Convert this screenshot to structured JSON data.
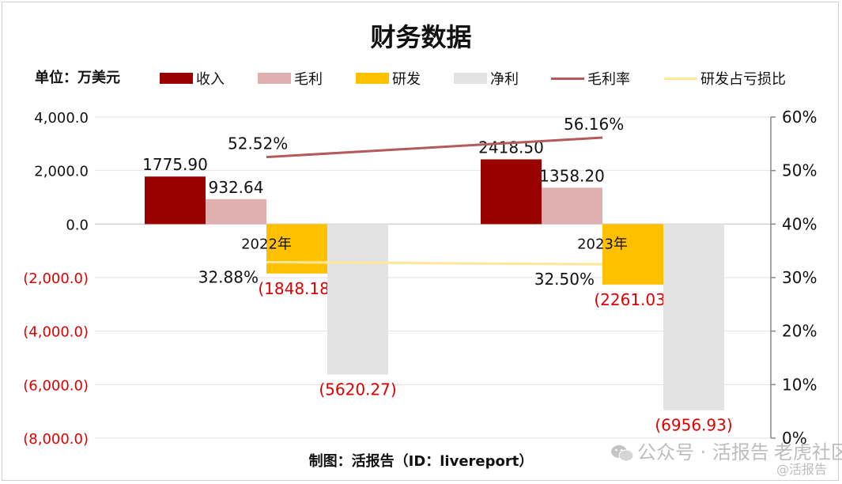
{
  "title": "财务数据",
  "unit_label": "单位：万美元",
  "source_label": "制图：活报告（ID：livereport）",
  "watermark": "公众号 · 活报告",
  "watermark_tag": "老虎社区",
  "watermark_sub": "@活报告",
  "colors": {
    "revenue": "#990000",
    "gross_profit": "#e0b0b0",
    "rd": "#ffc000",
    "net_profit": "#e3e3e3",
    "gross_margin_line": "#b55a5a",
    "rd_ratio_line": "#ffe699",
    "negative_text": "#e00000"
  },
  "legend": [
    {
      "label": "收入",
      "kind": "bar",
      "color": "#990000"
    },
    {
      "label": "毛利",
      "kind": "bar",
      "color": "#e0b0b0"
    },
    {
      "label": "研发",
      "kind": "bar",
      "color": "#ffc000"
    },
    {
      "label": "净利",
      "kind": "bar",
      "color": "#e3e3e3"
    },
    {
      "label": "毛利率",
      "kind": "line",
      "color": "#b55a5a"
    },
    {
      "label": "研发占亏损比",
      "kind": "line",
      "color": "#ffe699"
    }
  ],
  "chart_data": {
    "type": "bar",
    "categories": [
      "2022年",
      "2023年"
    ],
    "series": [
      {
        "name": "收入",
        "values": [
          1775.9,
          2418.5
        ],
        "labels": [
          "1775.90",
          "2418.50"
        ]
      },
      {
        "name": "毛利",
        "values": [
          932.64,
          1358.2
        ],
        "labels": [
          "932.64",
          "1358.20"
        ]
      },
      {
        "name": "研发",
        "values": [
          -1848.18,
          -2261.03
        ],
        "labels": [
          "(1848.18)",
          "(2261.03)"
        ]
      },
      {
        "name": "净利",
        "values": [
          -5620.27,
          -6956.93
        ],
        "labels": [
          "(5620.27)",
          "(6956.93)"
        ]
      }
    ],
    "line_series": [
      {
        "name": "毛利率",
        "axis": "right",
        "values": [
          52.52,
          56.16
        ],
        "labels": [
          "52.52%",
          "56.16%"
        ]
      },
      {
        "name": "研发占亏损比",
        "axis": "right",
        "values": [
          32.88,
          32.5
        ],
        "labels": [
          "32.88%",
          "32.50%"
        ]
      }
    ],
    "y_left": {
      "ylim": [
        -8000,
        4000
      ],
      "ticks": [
        4000,
        2000,
        0,
        -2000,
        -4000,
        -6000,
        -8000
      ],
      "tick_labels": [
        "4,000.0",
        "2,000.0",
        "0.0",
        "(2,000.0)",
        "(4,000.0)",
        "(6,000.0)",
        "(8,000.0)"
      ]
    },
    "y_right": {
      "ylim": [
        0,
        60
      ],
      "ticks": [
        60,
        50,
        40,
        30,
        20,
        10,
        0
      ],
      "tick_labels": [
        "60%",
        "50%",
        "40%",
        "30%",
        "20%",
        "10%",
        "0%"
      ]
    },
    "grid": true,
    "legend_position": "top"
  }
}
